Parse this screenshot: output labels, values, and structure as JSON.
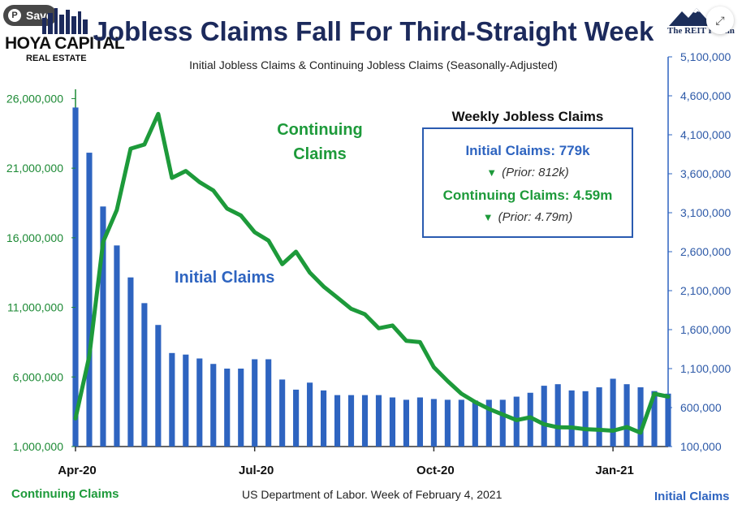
{
  "pin_button": {
    "label": "Save"
  },
  "logo_left": {
    "line1": "HOYA CAPITAL",
    "line2": "REAL ESTATE"
  },
  "logo_right": {
    "text": "The REIT Forum"
  },
  "colors": {
    "continuing": "#1d9a3a",
    "initial": "#2e64c0",
    "title": "#1c2a5c"
  },
  "chart_data": {
    "type": "bar+line",
    "title": "Jobless Claims Fall For Third-Straight Week",
    "subtitle": "Initial Jobless Claims & Continuing Jobless Claims (Seasonally-Adjusted)",
    "source": "US Department of Labor. Week of February 4, 2021",
    "left_axis": {
      "label": "Continuing Claims",
      "range": [
        1000000,
        29000000
      ],
      "ticks": [
        "1,000,000",
        "6,000,000",
        "11,000,000",
        "16,000,000",
        "21,000,000",
        "26,000,000"
      ]
    },
    "right_axis": {
      "label": "Initial Claims",
      "range": [
        100000,
        5100000
      ],
      "ticks": [
        "100,000",
        "600,000",
        "1,100,000",
        "1,600,000",
        "2,100,000",
        "2,600,000",
        "3,100,000",
        "3,600,000",
        "4,100,000",
        "4,600,000",
        "5,100,000"
      ]
    },
    "x_ticks": [
      {
        "label": "Apr-20",
        "index": 0
      },
      {
        "label": "Jul-20",
        "index": 13
      },
      {
        "label": "Oct-20",
        "index": 26
      },
      {
        "label": "Jan-21",
        "index": 39
      }
    ],
    "series": [
      {
        "name": "Initial Claims",
        "type": "bar",
        "axis": "right",
        "values": [
          4450000,
          3870000,
          3180000,
          2680000,
          2270000,
          1940000,
          1660000,
          1300000,
          1280000,
          1230000,
          1160000,
          1100000,
          1100000,
          1220000,
          1220000,
          960000,
          830000,
          920000,
          820000,
          760000,
          760000,
          760000,
          760000,
          730000,
          700000,
          730000,
          710000,
          700000,
          700000,
          690000,
          700000,
          700000,
          740000,
          790000,
          880000,
          900000,
          820000,
          810000,
          860000,
          970000,
          900000,
          860000,
          812000,
          779000
        ]
      },
      {
        "name": "Continuing Claims",
        "type": "line",
        "axis": "left",
        "values": [
          3020000,
          7500000,
          15700000,
          18000000,
          22400000,
          22700000,
          24900000,
          20300000,
          20800000,
          20000000,
          19400000,
          18100000,
          17600000,
          16400000,
          15800000,
          14100000,
          15000000,
          13500000,
          12500000,
          11700000,
          10900000,
          10500000,
          9500000,
          9700000,
          8600000,
          8500000,
          6700000,
          5700000,
          4800000,
          4200000,
          3700000,
          3300000,
          2900000,
          3100000,
          2600000,
          2380000,
          2370000,
          2250000,
          2200000,
          2140000,
          2400000,
          2000000,
          4790000,
          4590000
        ]
      }
    ],
    "annotations": {
      "continuing_label": [
        "Continuing",
        "Claims"
      ],
      "initial_label": "Initial Claims"
    },
    "info_box": {
      "title": "Weekly Jobless Claims",
      "initial": "Initial Claims: 779k",
      "initial_prior": "(Prior: 812k)",
      "continuing": "Continuing Claims: 4.59m",
      "continuing_prior": "(Prior: 4.79m)"
    },
    "bottom_left_label": "Continuing Claims",
    "bottom_right_label": "Initial Claims"
  }
}
